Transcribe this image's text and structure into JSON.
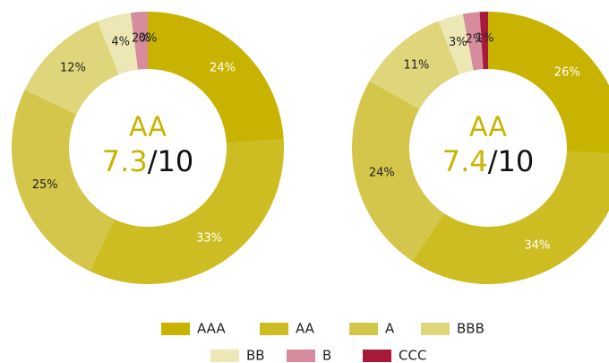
{
  "chart_data": [
    {
      "type": "pie",
      "categories": [
        "AAA",
        "AA",
        "A",
        "BBB",
        "BB",
        "B",
        "CCC"
      ],
      "values": [
        24,
        33,
        25,
        12,
        4,
        2,
        0
      ],
      "value_labels": [
        "24%",
        "33%",
        "25%",
        "12%",
        "4%",
        "2%",
        "0%"
      ],
      "colors": [
        "#c8b400",
        "#cdbd22",
        "#d4c64a",
        "#dfd57a",
        "#ece7b4",
        "#d68c9c",
        "#a61a3a"
      ],
      "center": {
        "rating": "AA",
        "score": 7.3,
        "scale": "/10"
      }
    },
    {
      "type": "pie",
      "categories": [
        "AAA",
        "AA",
        "A",
        "BBB",
        "BB",
        "B",
        "CCC"
      ],
      "values": [
        26,
        34,
        24,
        11,
        3,
        2,
        1
      ],
      "value_labels": [
        "26%",
        "34%",
        "24%",
        "11%",
        "3%",
        "2%",
        "1%"
      ],
      "colors": [
        "#c8b400",
        "#cdbd22",
        "#d4c64a",
        "#dfd57a",
        "#ece7b4",
        "#d68c9c",
        "#a61a3a"
      ],
      "center": {
        "rating": "AA",
        "score": 7.4,
        "scale": "/10"
      }
    }
  ]
}
